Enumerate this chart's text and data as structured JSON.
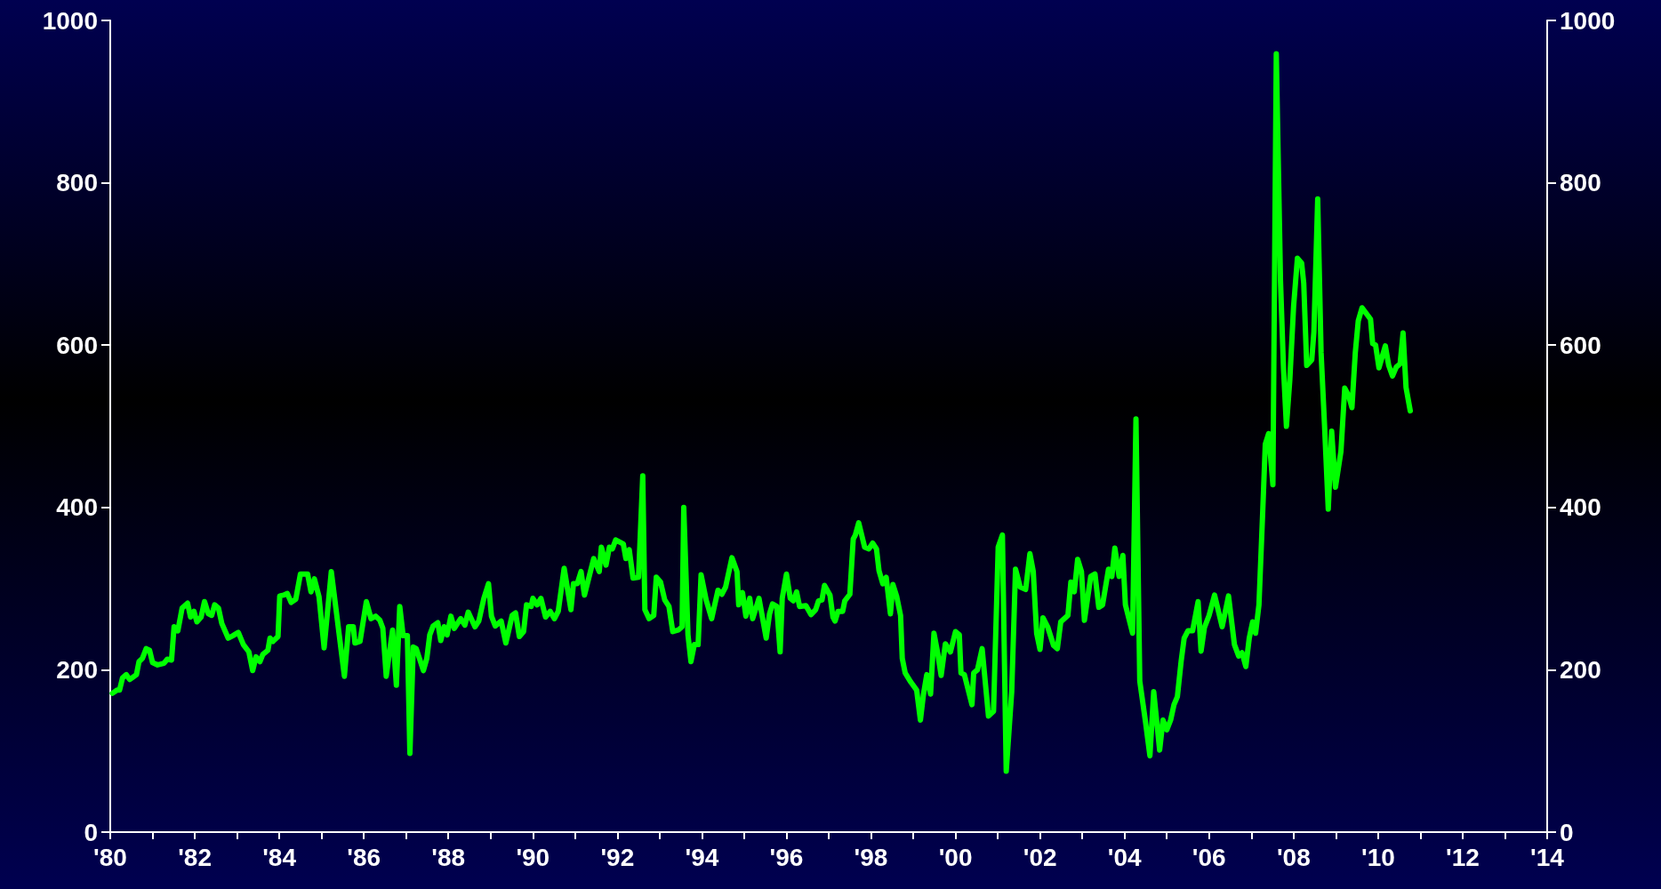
{
  "chart_data": {
    "type": "line",
    "x": [
      1980.05,
      1980.16,
      1980.22,
      1980.29,
      1980.38,
      1980.46,
      1980.62,
      1980.68,
      1980.76,
      1980.85,
      1980.93,
      1981.0,
      1981.12,
      1981.27,
      1981.35,
      1981.45,
      1981.51,
      1981.6,
      1981.7,
      1981.83,
      1981.9,
      1981.98,
      1982.05,
      1982.15,
      1982.23,
      1982.32,
      1982.4,
      1982.47,
      1982.56,
      1982.64,
      1982.79,
      1982.9,
      1983.03,
      1983.15,
      1983.28,
      1983.37,
      1983.45,
      1983.54,
      1983.61,
      1983.73,
      1983.78,
      1983.85,
      1983.97,
      1984.01,
      1984.1,
      1984.19,
      1984.28,
      1984.39,
      1984.5,
      1984.67,
      1984.75,
      1984.83,
      1984.94,
      1985.06,
      1985.23,
      1985.36,
      1985.54,
      1985.64,
      1985.75,
      1985.79,
      1985.91,
      1986.06,
      1986.17,
      1986.28,
      1986.38,
      1986.45,
      1986.53,
      1986.68,
      1986.77,
      1986.85,
      1986.93,
      1987.03,
      1987.09,
      1987.17,
      1987.24,
      1987.41,
      1987.49,
      1987.56,
      1987.64,
      1987.75,
      1987.82,
      1987.9,
      1987.97,
      1988.06,
      1988.14,
      1988.29,
      1988.39,
      1988.47,
      1988.63,
      1988.72,
      1988.84,
      1988.95,
      1989.02,
      1989.11,
      1989.25,
      1989.36,
      1989.51,
      1989.59,
      1989.68,
      1989.78,
      1989.85,
      1989.96,
      1990.0,
      1990.1,
      1990.19,
      1990.3,
      1990.41,
      1990.51,
      1990.6,
      1990.74,
      1990.9,
      1990.96,
      1991.05,
      1991.14,
      1991.22,
      1991.44,
      1991.57,
      1991.62,
      1991.73,
      1991.81,
      1991.88,
      1991.96,
      1992.14,
      1992.2,
      1992.28,
      1992.37,
      1992.5,
      1992.6,
      1992.65,
      1992.75,
      1992.86,
      1992.92,
      1993.02,
      1993.12,
      1993.22,
      1993.31,
      1993.44,
      1993.53,
      1993.57,
      1993.67,
      1993.74,
      1993.82,
      1993.91,
      1993.98,
      1994.1,
      1994.23,
      1994.38,
      1994.47,
      1994.56,
      1994.71,
      1994.83,
      1994.87,
      1994.96,
      1995.04,
      1995.13,
      1995.2,
      1995.35,
      1995.52,
      1995.6,
      1995.67,
      1995.77,
      1995.85,
      1995.9,
      1996.0,
      1996.09,
      1996.16,
      1996.24,
      1996.31,
      1996.46,
      1996.58,
      1996.69,
      1996.76,
      1996.84,
      1996.9,
      1997.03,
      1997.1,
      1997.15,
      1997.22,
      1997.33,
      1997.38,
      1997.5,
      1997.58,
      1997.63,
      1997.71,
      1997.85,
      1997.95,
      1998.04,
      1998.13,
      1998.19,
      1998.28,
      1998.36,
      1998.46,
      1998.52,
      1998.61,
      1998.7,
      1998.74,
      1998.81,
      1998.94,
      1999.08,
      1999.17,
      1999.24,
      1999.32,
      1999.41,
      1999.49,
      1999.58,
      1999.66,
      1999.76,
      1999.88,
      2000.0,
      2000.09,
      2000.13,
      2000.21,
      2000.39,
      2000.43,
      2000.52,
      2000.63,
      2000.78,
      2000.9,
      2001.01,
      2001.11,
      2001.2,
      2001.33,
      2001.42,
      2001.53,
      2001.66,
      2001.76,
      2001.84,
      2001.92,
      2002.0,
      2002.07,
      2002.18,
      2002.32,
      2002.41,
      2002.49,
      2002.66,
      2002.73,
      2002.81,
      2002.89,
      2002.98,
      2003.05,
      2003.2,
      2003.3,
      2003.39,
      2003.48,
      2003.62,
      2003.7,
      2003.77,
      2003.87,
      2003.96,
      2004.02,
      2004.19,
      2004.27,
      2004.36,
      2004.49,
      2004.6,
      2004.69,
      2004.83,
      2004.91,
      2005.0,
      2005.09,
      2005.17,
      2005.25,
      2005.34,
      2005.41,
      2005.5,
      2005.61,
      2005.74,
      2005.81,
      2005.89,
      2006.0,
      2006.13,
      2006.31,
      2006.46,
      2006.6,
      2006.7,
      2006.78,
      2006.87,
      2006.95,
      2007.03,
      2007.1,
      2007.18,
      2007.27,
      2007.33,
      2007.41,
      2007.51,
      2007.59,
      2007.69,
      2007.76,
      2007.83,
      2007.91,
      2008.0,
      2008.09,
      2008.19,
      2008.24,
      2008.31,
      2008.43,
      2008.48,
      2008.57,
      2008.65,
      2008.73,
      2008.82,
      2008.9,
      2008.99,
      2009.12,
      2009.21,
      2009.3,
      2009.38,
      2009.46,
      2009.53,
      2009.62,
      2009.82,
      2009.87,
      2009.94,
      2010.02,
      2010.17,
      2010.25,
      2010.34,
      2010.43,
      2010.52,
      2010.59,
      2010.66,
      2010.76
    ],
    "series": [
      {
        "color": "#00ff00",
        "values": [
          171,
          175,
          175,
          190,
          194,
          188,
          194,
          210,
          214,
          226,
          224,
          209,
          206,
          208,
          213,
          212,
          253,
          248,
          276,
          282,
          265,
          272,
          259,
          265,
          284,
          269,
          267,
          280,
          276,
          257,
          239,
          242,
          246,
          231,
          222,
          199,
          216,
          210,
          219,
          224,
          239,
          235,
          241,
          291,
          292,
          294,
          283,
          287,
          318,
          318,
          296,
          312,
          290,
          227,
          321,
          267,
          192,
          253,
          253,
          233,
          235,
          284,
          263,
          266,
          261,
          251,
          192,
          249,
          181,
          278,
          242,
          242,
          97,
          228,
          226,
          199,
          214,
          243,
          254,
          258,
          236,
          253,
          243,
          266,
          251,
          263,
          255,
          271,
          253,
          260,
          288,
          306,
          266,
          254,
          260,
          233,
          267,
          270,
          241,
          247,
          280,
          278,
          288,
          280,
          288,
          265,
          272,
          263,
          272,
          325,
          274,
          306,
          306,
          321,
          292,
          337,
          321,
          351,
          329,
          351,
          349,
          360,
          355,
          337,
          348,
          313,
          314,
          439,
          274,
          263,
          267,
          314,
          308,
          286,
          278,
          247,
          249,
          253,
          400,
          243,
          210,
          231,
          231,
          317,
          286,
          263,
          298,
          293,
          302,
          338,
          321,
          280,
          295,
          266,
          288,
          263,
          288,
          239,
          269,
          281,
          278,
          222,
          288,
          318,
          288,
          285,
          296,
          278,
          279,
          268,
          274,
          285,
          286,
          304,
          292,
          265,
          260,
          272,
          272,
          285,
          293,
          361,
          366,
          381,
          351,
          349,
          356,
          349,
          322,
          306,
          314,
          269,
          305,
          290,
          267,
          214,
          196,
          185,
          175,
          138,
          169,
          194,
          170,
          245,
          220,
          193,
          232,
          222,
          247,
          243,
          196,
          194,
          157,
          196,
          200,
          226,
          143,
          149,
          351,
          366,
          75,
          173,
          324,
          302,
          299,
          343,
          321,
          245,
          225,
          264,
          253,
          230,
          226,
          259,
          267,
          308,
          296,
          336,
          321,
          261,
          315,
          318,
          277,
          280,
          324,
          315,
          350,
          315,
          341,
          280,
          245,
          509,
          186,
          138,
          94,
          173,
          101,
          138,
          126,
          138,
          157,
          167,
          211,
          239,
          248,
          248,
          284,
          223,
          252,
          267,
          292,
          253,
          291,
          231,
          217,
          221,
          204,
          239,
          259,
          245,
          280,
          396,
          478,
          491,
          428,
          959,
          679,
          572,
          500,
          557,
          648,
          707,
          701,
          676,
          575,
          582,
          616,
          780,
          591,
          503,
          398,
          494,
          425,
          469,
          547,
          538,
          523,
          591,
          630,
          646,
          632,
          602,
          600,
          572,
          599,
          575,
          562,
          573,
          577,
          615,
          548,
          519
        ]
      }
    ],
    "xlim": [
      1980,
      2014
    ],
    "xticks": [
      {
        "value": 1980,
        "label": "'80"
      },
      {
        "value": 1981,
        "label": null
      },
      {
        "value": 1982,
        "label": "'82"
      },
      {
        "value": 1983,
        "label": null
      },
      {
        "value": 1984,
        "label": "'84"
      },
      {
        "value": 1985,
        "label": null
      },
      {
        "value": 1986,
        "label": "'86"
      },
      {
        "value": 1987,
        "label": null
      },
      {
        "value": 1988,
        "label": "'88"
      },
      {
        "value": 1989,
        "label": null
      },
      {
        "value": 1990,
        "label": "'90"
      },
      {
        "value": 1991,
        "label": null
      },
      {
        "value": 1992,
        "label": "'92"
      },
      {
        "value": 1993,
        "label": null
      },
      {
        "value": 1994,
        "label": "'94"
      },
      {
        "value": 1995,
        "label": null
      },
      {
        "value": 1996,
        "label": "'96"
      },
      {
        "value": 1997,
        "label": null
      },
      {
        "value": 1998,
        "label": "'98"
      },
      {
        "value": 1999,
        "label": null
      },
      {
        "value": 2000,
        "label": "'00"
      },
      {
        "value": 2001,
        "label": null
      },
      {
        "value": 2002,
        "label": "'02"
      },
      {
        "value": 2003,
        "label": null
      },
      {
        "value": 2004,
        "label": "'04"
      },
      {
        "value": 2005,
        "label": null
      },
      {
        "value": 2006,
        "label": "'06"
      },
      {
        "value": 2007,
        "label": null
      },
      {
        "value": 2008,
        "label": "'08"
      },
      {
        "value": 2009,
        "label": null
      },
      {
        "value": 2010,
        "label": "'10"
      },
      {
        "value": 2011,
        "label": null
      },
      {
        "value": 2012,
        "label": "'12"
      },
      {
        "value": 2013,
        "label": null
      },
      {
        "value": 2014,
        "label": "'14"
      }
    ],
    "ylim": [
      0,
      1000
    ],
    "yticks": [
      0,
      200,
      400,
      600,
      800,
      1000
    ],
    "y2lim": [
      0,
      1000
    ],
    "y2ticks": [
      0,
      200,
      400,
      600,
      800,
      1000
    ],
    "grid": false,
    "marker": "none",
    "line_style": "solid"
  }
}
